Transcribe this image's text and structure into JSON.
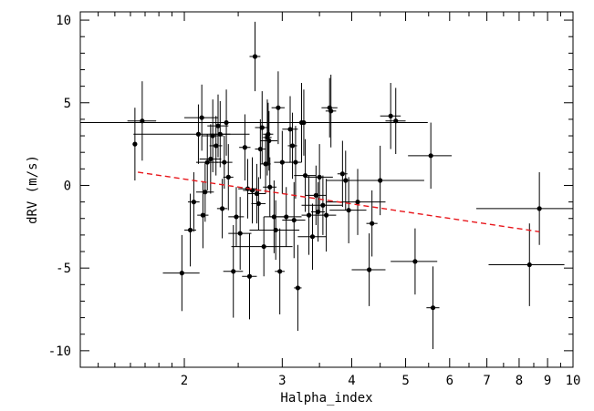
{
  "chart_data": {
    "type": "scatter",
    "title": "",
    "xlabel": "Halpha_index",
    "ylabel": "dRV (m/s)",
    "x_scale": "log",
    "xlim": [
      1.3,
      10
    ],
    "ylim": [
      -11,
      10.5
    ],
    "x_ticks": [
      2,
      3,
      4,
      5,
      6,
      7,
      8,
      9,
      10
    ],
    "x_tick_labels": [
      "2",
      "3",
      "4",
      "5",
      "6",
      "7",
      "8",
      "9",
      "10"
    ],
    "y_ticks": [
      -10,
      -5,
      0,
      5,
      10
    ],
    "y_tick_labels": [
      "-10",
      "-5",
      "0",
      "5",
      "10"
    ],
    "grid": false,
    "marker_color": "#000000",
    "fit_color": "#e8161b",
    "series": [
      {
        "points": [
          {
            "x": 1.63,
            "y": 2.5,
            "xerr": 0.0,
            "yerr": 2.2
          },
          {
            "x": 1.68,
            "y": 3.9,
            "xerr": 0.1,
            "yerr": 2.4
          },
          {
            "x": 1.98,
            "y": -5.3,
            "xerr": 0.15,
            "yerr": 2.3
          },
          {
            "x": 2.05,
            "y": -2.7,
            "xerr": 0.05,
            "yerr": 2.2
          },
          {
            "x": 2.08,
            "y": -1.0,
            "xerr": 0.05,
            "yerr": 1.8
          },
          {
            "x": 2.12,
            "y": 3.1,
            "xerr": 0.5,
            "yerr": 1.8
          },
          {
            "x": 2.15,
            "y": 4.1,
            "xerr": 0.15,
            "yerr": 2.0
          },
          {
            "x": 2.16,
            "y": -1.8,
            "xerr": 0.05,
            "yerr": 2.0
          },
          {
            "x": 2.18,
            "y": -0.4,
            "xerr": 0.08,
            "yerr": 1.8
          },
          {
            "x": 2.2,
            "y": 1.4,
            "xerr": 0.1,
            "yerr": 1.7
          },
          {
            "x": 2.23,
            "y": 1.6,
            "xerr": 0.1,
            "yerr": 2.1
          },
          {
            "x": 2.25,
            "y": 3.0,
            "xerr": 0.1,
            "yerr": 2.2
          },
          {
            "x": 2.28,
            "y": 2.4,
            "xerr": 0.06,
            "yerr": 1.8
          },
          {
            "x": 2.3,
            "y": 3.6,
            "xerr": 0.1,
            "yerr": 1.9
          },
          {
            "x": 2.32,
            "y": 3.1,
            "xerr": 0.1,
            "yerr": 2.0
          },
          {
            "x": 2.34,
            "y": -1.4,
            "xerr": 0.05,
            "yerr": 1.8
          },
          {
            "x": 2.36,
            "y": 1.4,
            "xerr": 0.08,
            "yerr": 1.6
          },
          {
            "x": 2.38,
            "y": 3.8,
            "xerr": 0.1,
            "yerr": 2.0
          },
          {
            "x": 2.4,
            "y": 0.5,
            "xerr": 0.05,
            "yerr": 2.0
          },
          {
            "x": 2.45,
            "y": -5.2,
            "xerr": 0.1,
            "yerr": 2.8
          },
          {
            "x": 2.48,
            "y": -1.9,
            "xerr": 0.08,
            "yerr": 1.8
          },
          {
            "x": 2.52,
            "y": -2.9,
            "xerr": 0.12,
            "yerr": 2.2
          },
          {
            "x": 2.57,
            "y": 2.3,
            "xerr": 0.06,
            "yerr": 2.0
          },
          {
            "x": 2.6,
            "y": -0.2,
            "xerr": 0.1,
            "yerr": 1.8
          },
          {
            "x": 2.62,
            "y": -5.5,
            "xerr": 0.08,
            "yerr": 2.6
          },
          {
            "x": 2.65,
            "y": -0.3,
            "xerr": 0.1,
            "yerr": 2.0
          },
          {
            "x": 2.68,
            "y": 7.8,
            "xerr": 0.06,
            "yerr": 2.1
          },
          {
            "x": 2.7,
            "y": -0.5,
            "xerr": 0.1,
            "yerr": 1.8
          },
          {
            "x": 2.72,
            "y": -1.1,
            "xerr": 0.08,
            "yerr": 1.6
          },
          {
            "x": 2.74,
            "y": 2.2,
            "xerr": 0.06,
            "yerr": 1.8
          },
          {
            "x": 2.76,
            "y": 3.5,
            "xerr": 0.08,
            "yerr": 2.2
          },
          {
            "x": 2.78,
            "y": -3.7,
            "xerr": 0.35,
            "yerr": 1.8
          },
          {
            "x": 2.8,
            "y": 1.3,
            "xerr": 0.06,
            "yerr": 1.8
          },
          {
            "x": 2.82,
            "y": 2.9,
            "xerr": 0.05,
            "yerr": 2.3
          },
          {
            "x": 2.83,
            "y": 3.1,
            "xerr": 0.06,
            "yerr": 1.9
          },
          {
            "x": 2.84,
            "y": 2.7,
            "xerr": 0.1,
            "yerr": 1.8
          },
          {
            "x": 2.85,
            "y": -0.1,
            "xerr": 0.08,
            "yerr": 1.8
          },
          {
            "x": 2.9,
            "y": -1.9,
            "xerr": 0.12,
            "yerr": 2.2
          },
          {
            "x": 2.92,
            "y": -2.7,
            "xerr": 0.3,
            "yerr": 1.8
          },
          {
            "x": 2.95,
            "y": 4.7,
            "xerr": 0.08,
            "yerr": 2.2
          },
          {
            "x": 2.97,
            "y": -5.2,
            "xerr": 0.06,
            "yerr": 2.6
          },
          {
            "x": 3.0,
            "y": 1.4,
            "xerr": 0.1,
            "yerr": 1.9
          },
          {
            "x": 3.05,
            "y": -1.9,
            "xerr": 0.2,
            "yerr": 1.8
          },
          {
            "x": 3.1,
            "y": 3.4,
            "xerr": 0.1,
            "yerr": 2.0
          },
          {
            "x": 3.13,
            "y": 2.4,
            "xerr": 0.06,
            "yerr": 2.0
          },
          {
            "x": 3.15,
            "y": -2.1,
            "xerr": 0.15,
            "yerr": 2.3
          },
          {
            "x": 3.17,
            "y": 1.4,
            "xerr": 0.08,
            "yerr": 2.2
          },
          {
            "x": 3.2,
            "y": -6.2,
            "xerr": 0.05,
            "yerr": 2.6
          },
          {
            "x": 3.25,
            "y": 3.8,
            "xerr": 0.1,
            "yerr": 2.4
          },
          {
            "x": 3.28,
            "y": 3.8,
            "xerr": 2.2,
            "yerr": 2.0
          },
          {
            "x": 3.3,
            "y": 0.6,
            "xerr": 0.15,
            "yerr": 2.2
          },
          {
            "x": 3.35,
            "y": -1.8,
            "xerr": 0.1,
            "yerr": 2.4
          },
          {
            "x": 3.4,
            "y": -3.1,
            "xerr": 0.2,
            "yerr": 2.0
          },
          {
            "x": 3.45,
            "y": -0.6,
            "xerr": 0.15,
            "yerr": 1.8
          },
          {
            "x": 3.48,
            "y": -1.6,
            "xerr": 0.1,
            "yerr": 1.8
          },
          {
            "x": 3.5,
            "y": 0.5,
            "xerr": 0.2,
            "yerr": 2.0
          },
          {
            "x": 3.55,
            "y": -1.2,
            "xerr": 0.3,
            "yerr": 1.8
          },
          {
            "x": 3.6,
            "y": -1.8,
            "xerr": 0.15,
            "yerr": 2.2
          },
          {
            "x": 3.65,
            "y": 4.7,
            "xerr": 0.12,
            "yerr": 1.8
          },
          {
            "x": 3.67,
            "y": 4.5,
            "xerr": 0.08,
            "yerr": 2.2
          },
          {
            "x": 3.85,
            "y": 0.7,
            "xerr": 0.08,
            "yerr": 2.0
          },
          {
            "x": 3.9,
            "y": 0.3,
            "xerr": 0.1,
            "yerr": 1.8
          },
          {
            "x": 3.95,
            "y": -1.5,
            "xerr": 0.3,
            "yerr": 2.0
          },
          {
            "x": 4.1,
            "y": -1.0,
            "xerr": 0.5,
            "yerr": 2.0
          },
          {
            "x": 4.3,
            "y": -5.1,
            "xerr": 0.3,
            "yerr": 2.2
          },
          {
            "x": 4.35,
            "y": -2.3,
            "xerr": 0.1,
            "yerr": 2.0
          },
          {
            "x": 4.5,
            "y": 0.3,
            "xerr": 0.9,
            "yerr": 2.1
          },
          {
            "x": 4.7,
            "y": 4.2,
            "xerr": 0.2,
            "yerr": 2.0
          },
          {
            "x": 4.8,
            "y": 3.9,
            "xerr": 0.2,
            "yerr": 2.0
          },
          {
            "x": 5.2,
            "y": -4.6,
            "xerr": 0.5,
            "yerr": 2.0
          },
          {
            "x": 5.55,
            "y": 1.8,
            "xerr": 0.5,
            "yerr": 2.0
          },
          {
            "x": 5.6,
            "y": -7.4,
            "xerr": 0.15,
            "yerr": 2.5
          },
          {
            "x": 8.35,
            "y": -4.8,
            "xerr": 1.3,
            "yerr": 2.5
          },
          {
            "x": 8.7,
            "y": -1.4,
            "xerr": 2.0,
            "yerr": 2.2
          }
        ]
      }
    ],
    "fit_line": {
      "x": [
        1.65,
        8.7
      ],
      "y": [
        0.8,
        -2.8
      ],
      "style": "dashed"
    }
  }
}
